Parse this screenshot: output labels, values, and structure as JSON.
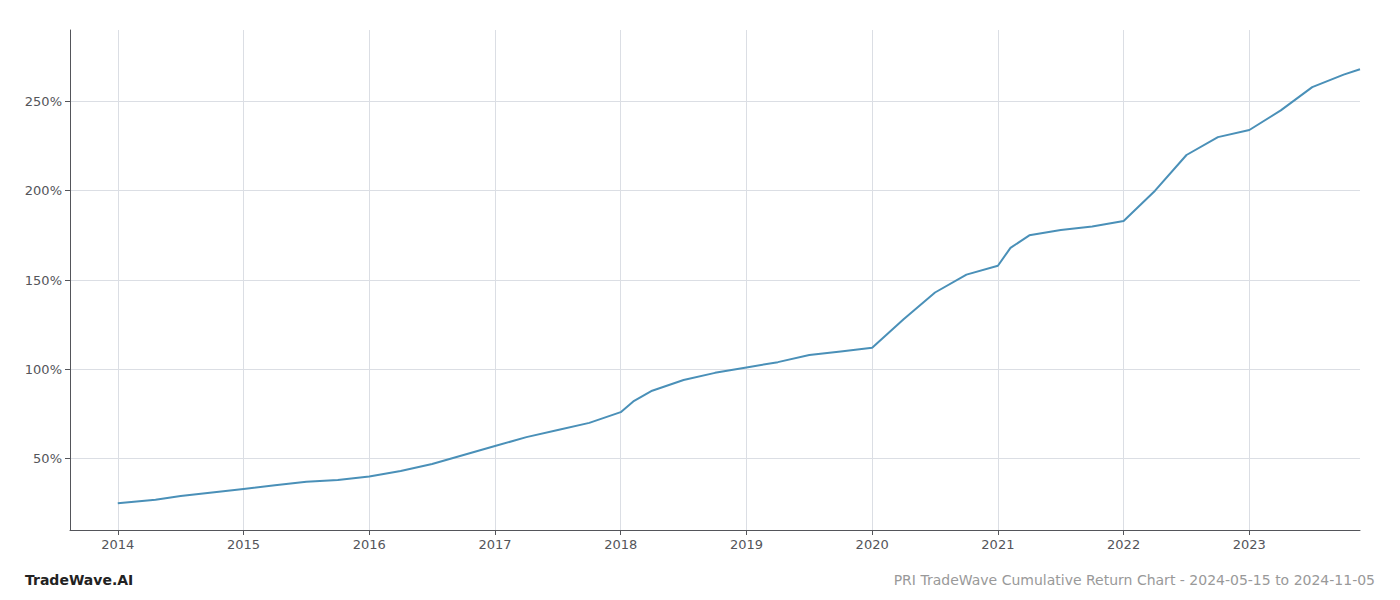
{
  "chart_data": {
    "type": "line",
    "title": "PRI TradeWave Cumulative Return Chart - 2024-05-15 to 2024-11-05",
    "annotations": [
      "TradeWave.AI"
    ],
    "color": "#4a90b8",
    "grid": true,
    "x": [
      2014.0,
      2014.15,
      2014.3,
      2014.5,
      2014.75,
      2015.0,
      2015.25,
      2015.5,
      2015.75,
      2016.0,
      2016.25,
      2016.5,
      2016.75,
      2017.0,
      2017.25,
      2017.5,
      2017.75,
      2018.0,
      2018.1,
      2018.25,
      2018.5,
      2018.75,
      2019.0,
      2019.25,
      2019.5,
      2019.75,
      2020.0,
      2020.25,
      2020.5,
      2020.75,
      2021.0,
      2021.1,
      2021.25,
      2021.5,
      2021.75,
      2022.0,
      2022.25,
      2022.5,
      2022.75,
      2023.0,
      2023.25,
      2023.5,
      2023.75,
      2023.88
    ],
    "values": [
      25,
      26,
      27,
      29,
      31,
      33,
      35,
      37,
      38,
      40,
      43,
      47,
      52,
      57,
      62,
      66,
      70,
      76,
      82,
      88,
      94,
      98,
      101,
      104,
      108,
      110,
      112,
      128,
      143,
      153,
      158,
      168,
      175,
      178,
      180,
      183,
      200,
      220,
      230,
      234,
      245,
      258,
      265,
      268
    ],
    "xlim": [
      2013.62,
      2023.88
    ],
    "xticks": [
      2014,
      2015,
      2016,
      2017,
      2018,
      2019,
      2020,
      2021,
      2022,
      2023
    ],
    "ylim": [
      10,
      290
    ],
    "yticks": [
      {
        "value": 50,
        "label": "50%"
      },
      {
        "value": 100,
        "label": "100%"
      },
      {
        "value": 150,
        "label": "150%"
      },
      {
        "value": 200,
        "label": "200%"
      },
      {
        "value": 250,
        "label": "250%"
      }
    ]
  }
}
